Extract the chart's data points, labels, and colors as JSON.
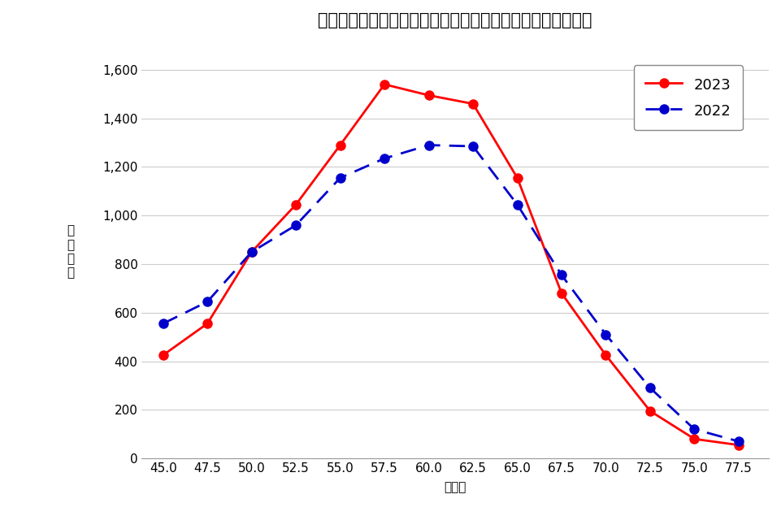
{
  "title": "第２回全統記述模試　国公立大医学科前期　志望者学力分布",
  "xlabel": "偏差値",
  "ylabel": "志\n望\n者\n数",
  "x_values": [
    45.0,
    47.5,
    50.0,
    52.5,
    55.0,
    57.5,
    60.0,
    62.5,
    65.0,
    67.5,
    70.0,
    72.5,
    75.0,
    77.5
  ],
  "y_2023": [
    425,
    555,
    850,
    1045,
    1290,
    1540,
    1495,
    1460,
    1155,
    680,
    425,
    195,
    80,
    55
  ],
  "y_2022": [
    555,
    645,
    850,
    960,
    1155,
    1235,
    1290,
    1285,
    1045,
    755,
    510,
    290,
    120,
    70
  ],
  "color_2023": "#ff0000",
  "color_2022": "#0000cc",
  "ylim": [
    0,
    1700
  ],
  "yticks": [
    0,
    200,
    400,
    600,
    800,
    1000,
    1200,
    1400,
    1600
  ],
  "legend_labels": [
    "2023",
    "2022"
  ],
  "background_color": "#ffffff",
  "grid_color": "#cccccc",
  "title_fontsize": 15,
  "label_fontsize": 11,
  "tick_fontsize": 11,
  "legend_fontsize": 13
}
